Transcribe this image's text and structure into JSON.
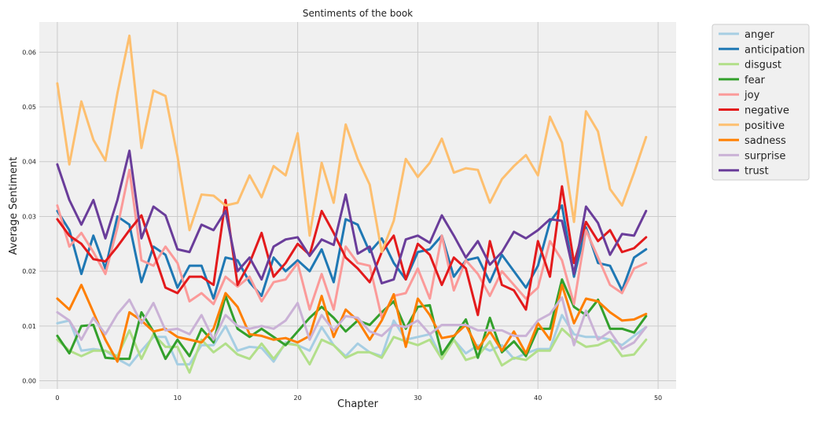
{
  "chart_data": {
    "type": "line",
    "title": "Sentiments of the book",
    "xlabel": "Chapter",
    "ylabel": "Average Sentiment",
    "xlim": [
      -1.5,
      51.5
    ],
    "ylim": [
      -0.0015,
      0.0655
    ],
    "xticks": [
      0,
      10,
      20,
      30,
      40,
      50
    ],
    "yticks": [
      0.0,
      0.01,
      0.02,
      0.03,
      0.04,
      0.05,
      0.06
    ],
    "ytick_labels": [
      "0.00",
      "0.01",
      "0.02",
      "0.03",
      "0.04",
      "0.05",
      "0.06"
    ],
    "grid": true,
    "legend_position": "outside-top-right",
    "x": [
      0,
      1,
      2,
      3,
      4,
      5,
      6,
      7,
      8,
      9,
      10,
      11,
      12,
      13,
      14,
      15,
      16,
      17,
      18,
      19,
      20,
      21,
      22,
      23,
      24,
      25,
      26,
      27,
      28,
      29,
      30,
      31,
      32,
      33,
      34,
      35,
      36,
      37,
      38,
      39,
      40,
      41,
      42,
      43,
      44,
      45,
      46,
      47,
      48,
      49
    ],
    "series": [
      {
        "name": "anger",
        "color": "#a6cee3",
        "values": [
          0.0105,
          0.011,
          0.0055,
          0.0058,
          0.0055,
          0.004,
          0.0028,
          0.0055,
          0.008,
          0.008,
          0.003,
          0.003,
          0.0065,
          0.0065,
          0.01,
          0.0055,
          0.0062,
          0.006,
          0.0035,
          0.007,
          0.0065,
          0.0055,
          0.0098,
          0.0065,
          0.0045,
          0.0068,
          0.0052,
          0.0045,
          0.011,
          0.0075,
          0.008,
          0.0085,
          0.004,
          0.0075,
          0.005,
          0.0065,
          0.0055,
          0.0065,
          0.004,
          0.005,
          0.0058,
          0.0058,
          0.012,
          0.0085,
          0.008,
          0.008,
          0.0075,
          0.0065,
          0.0082,
          0.0098
        ]
      },
      {
        "name": "anticipation",
        "color": "#1f78b4",
        "values": [
          0.031,
          0.0275,
          0.0195,
          0.0265,
          0.0205,
          0.03,
          0.0285,
          0.018,
          0.0245,
          0.023,
          0.017,
          0.021,
          0.021,
          0.015,
          0.0225,
          0.022,
          0.018,
          0.0155,
          0.0225,
          0.02,
          0.022,
          0.02,
          0.024,
          0.018,
          0.0295,
          0.0285,
          0.0235,
          0.026,
          0.0215,
          0.0185,
          0.0235,
          0.024,
          0.0265,
          0.019,
          0.022,
          0.0225,
          0.018,
          0.023,
          0.02,
          0.017,
          0.021,
          0.029,
          0.032,
          0.019,
          0.028,
          0.0215,
          0.021,
          0.0165,
          0.0225,
          0.024
        ]
      },
      {
        "name": "disgust",
        "color": "#b2df8a",
        "values": [
          0.0075,
          0.0055,
          0.0045,
          0.0055,
          0.0055,
          0.0045,
          0.0092,
          0.004,
          0.0085,
          0.0062,
          0.0062,
          0.0015,
          0.0075,
          0.0052,
          0.0068,
          0.0048,
          0.004,
          0.0068,
          0.004,
          0.0068,
          0.0065,
          0.003,
          0.0075,
          0.0065,
          0.0042,
          0.0052,
          0.0052,
          0.0042,
          0.008,
          0.0072,
          0.0065,
          0.0075,
          0.004,
          0.0075,
          0.0038,
          0.0045,
          0.0072,
          0.0028,
          0.0042,
          0.0038,
          0.0055,
          0.0055,
          0.0095,
          0.0075,
          0.0062,
          0.0065,
          0.0075,
          0.0045,
          0.0048,
          0.0075
        ]
      },
      {
        "name": "fear",
        "color": "#33a02c",
        "values": [
          0.0082,
          0.005,
          0.01,
          0.0102,
          0.0042,
          0.004,
          0.004,
          0.0125,
          0.009,
          0.004,
          0.0075,
          0.0045,
          0.0095,
          0.007,
          0.0155,
          0.0095,
          0.008,
          0.0095,
          0.008,
          0.0065,
          0.009,
          0.0115,
          0.0135,
          0.0115,
          0.009,
          0.011,
          0.0102,
          0.0125,
          0.0145,
          0.0095,
          0.0135,
          0.0138,
          0.0048,
          0.008,
          0.0112,
          0.0042,
          0.0115,
          0.0052,
          0.0072,
          0.0045,
          0.0095,
          0.0095,
          0.0185,
          0.0135,
          0.012,
          0.0148,
          0.0095,
          0.0095,
          0.0088,
          0.0118
        ]
      },
      {
        "name": "joy",
        "color": "#fb9a99",
        "values": [
          0.032,
          0.0245,
          0.027,
          0.0235,
          0.0195,
          0.028,
          0.0385,
          0.022,
          0.021,
          0.0245,
          0.0215,
          0.0145,
          0.016,
          0.014,
          0.019,
          0.0172,
          0.019,
          0.0145,
          0.018,
          0.0185,
          0.0215,
          0.013,
          0.0195,
          0.013,
          0.0245,
          0.0215,
          0.021,
          0.0115,
          0.0155,
          0.016,
          0.0205,
          0.015,
          0.0265,
          0.0165,
          0.022,
          0.0195,
          0.0155,
          0.02,
          0.0175,
          0.015,
          0.017,
          0.0255,
          0.022,
          0.014,
          0.0275,
          0.0225,
          0.0175,
          0.016,
          0.0205,
          0.0215
        ]
      },
      {
        "name": "negative",
        "color": "#e31a1c",
        "values": [
          0.0295,
          0.0265,
          0.025,
          0.0222,
          0.0218,
          0.0245,
          0.0275,
          0.0302,
          0.0235,
          0.017,
          0.016,
          0.019,
          0.019,
          0.0175,
          0.033,
          0.0175,
          0.0215,
          0.027,
          0.019,
          0.0215,
          0.025,
          0.023,
          0.031,
          0.027,
          0.0225,
          0.0205,
          0.018,
          0.0235,
          0.0265,
          0.0185,
          0.025,
          0.023,
          0.0175,
          0.0225,
          0.0205,
          0.012,
          0.0255,
          0.0175,
          0.0165,
          0.013,
          0.0255,
          0.019,
          0.0355,
          0.0215,
          0.029,
          0.0255,
          0.0275,
          0.0235,
          0.0242,
          0.0262
        ]
      },
      {
        "name": "positive",
        "color": "#fdbf6f",
        "values": [
          0.0543,
          0.0395,
          0.051,
          0.044,
          0.0402,
          0.0525,
          0.063,
          0.0425,
          0.053,
          0.052,
          0.041,
          0.0275,
          0.034,
          0.0338,
          0.032,
          0.0325,
          0.0375,
          0.0335,
          0.0392,
          0.0375,
          0.0452,
          0.0265,
          0.0398,
          0.0325,
          0.0468,
          0.0405,
          0.0358,
          0.0235,
          0.0292,
          0.0405,
          0.0372,
          0.0398,
          0.0442,
          0.038,
          0.0388,
          0.0385,
          0.0325,
          0.0368,
          0.0392,
          0.0412,
          0.0375,
          0.0482,
          0.0435,
          0.029,
          0.0492,
          0.0455,
          0.035,
          0.032,
          0.038,
          0.0445
        ]
      },
      {
        "name": "sadness",
        "color": "#ff7f00",
        "values": [
          0.015,
          0.013,
          0.0175,
          0.0125,
          0.0075,
          0.0035,
          0.0125,
          0.011,
          0.009,
          0.0095,
          0.008,
          0.0075,
          0.007,
          0.0095,
          0.016,
          0.0135,
          0.0085,
          0.0082,
          0.0075,
          0.0078,
          0.007,
          0.0082,
          0.0155,
          0.008,
          0.013,
          0.011,
          0.0075,
          0.011,
          0.0158,
          0.0062,
          0.015,
          0.012,
          0.0078,
          0.0082,
          0.0102,
          0.0058,
          0.009,
          0.0055,
          0.009,
          0.005,
          0.0105,
          0.0075,
          0.0175,
          0.0105,
          0.015,
          0.0145,
          0.0125,
          0.011,
          0.0112,
          0.0122
        ]
      },
      {
        "name": "surprise",
        "color": "#cab2d6",
        "values": [
          0.0125,
          0.011,
          0.0075,
          0.0115,
          0.0085,
          0.0122,
          0.0148,
          0.0105,
          0.0142,
          0.0092,
          0.0095,
          0.0085,
          0.012,
          0.0075,
          0.012,
          0.01,
          0.0095,
          0.01,
          0.0095,
          0.011,
          0.0142,
          0.0075,
          0.012,
          0.0092,
          0.0118,
          0.0115,
          0.009,
          0.0082,
          0.0102,
          0.0098,
          0.011,
          0.0085,
          0.0102,
          0.0102,
          0.0102,
          0.0092,
          0.0092,
          0.0092,
          0.0082,
          0.0082,
          0.011,
          0.0122,
          0.0152,
          0.0065,
          0.0128,
          0.0075,
          0.009,
          0.0058,
          0.007,
          0.0098
        ]
      },
      {
        "name": "trust",
        "color": "#6a3d9a",
        "values": [
          0.0395,
          0.033,
          0.0285,
          0.033,
          0.026,
          0.033,
          0.042,
          0.026,
          0.0318,
          0.0302,
          0.024,
          0.0235,
          0.0285,
          0.0275,
          0.031,
          0.02,
          0.0225,
          0.0185,
          0.0245,
          0.0258,
          0.0262,
          0.0228,
          0.0258,
          0.0248,
          0.034,
          0.0232,
          0.0245,
          0.0178,
          0.0185,
          0.0258,
          0.0265,
          0.0252,
          0.0302,
          0.0265,
          0.0225,
          0.0255,
          0.0212,
          0.0235,
          0.0272,
          0.026,
          0.0275,
          0.0295,
          0.0292,
          0.0195,
          0.0318,
          0.0288,
          0.023,
          0.0268,
          0.0265,
          0.031
        ]
      }
    ]
  }
}
